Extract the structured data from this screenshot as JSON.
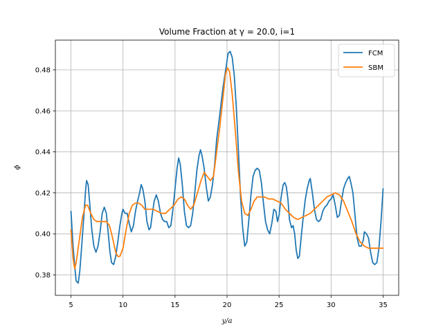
{
  "chart_data": {
    "type": "line",
    "title": "Volume Fraction at γ = 20.0, i=1",
    "xlabel": "y/a",
    "ylabel": "ϕ",
    "xlim": [
      3.5,
      36.5
    ],
    "ylim": [
      0.37,
      0.4945
    ],
    "xticks": [
      5,
      10,
      15,
      20,
      25,
      30,
      35
    ],
    "yticks": [
      0.38,
      0.4,
      0.42,
      0.44,
      0.46,
      0.48
    ],
    "ytick_labels": [
      "0.38",
      "0.40",
      "0.42",
      "0.44",
      "0.46",
      "0.48"
    ],
    "grid": true,
    "legend_position": "top-right",
    "series": [
      {
        "name": "FCM",
        "color": "#1f77b4",
        "points": [
          [
            5.0,
            0.411
          ],
          [
            5.2,
            0.394
          ],
          [
            5.4,
            0.382
          ],
          [
            5.5,
            0.377
          ],
          [
            5.7,
            0.376
          ],
          [
            5.85,
            0.382
          ],
          [
            6.0,
            0.392
          ],
          [
            6.2,
            0.406
          ],
          [
            6.4,
            0.421
          ],
          [
            6.5,
            0.426
          ],
          [
            6.65,
            0.424
          ],
          [
            6.8,
            0.415
          ],
          [
            7.0,
            0.402
          ],
          [
            7.2,
            0.394
          ],
          [
            7.4,
            0.391
          ],
          [
            7.6,
            0.394
          ],
          [
            7.8,
            0.401
          ],
          [
            8.0,
            0.41
          ],
          [
            8.2,
            0.413
          ],
          [
            8.4,
            0.41
          ],
          [
            8.55,
            0.402
          ],
          [
            8.75,
            0.391
          ],
          [
            8.9,
            0.386
          ],
          [
            9.1,
            0.385
          ],
          [
            9.3,
            0.389
          ],
          [
            9.5,
            0.396
          ],
          [
            9.7,
            0.404
          ],
          [
            9.9,
            0.41
          ],
          [
            10.0,
            0.412
          ],
          [
            10.2,
            0.41
          ],
          [
            10.4,
            0.41
          ],
          [
            10.6,
            0.405
          ],
          [
            10.8,
            0.401
          ],
          [
            11.0,
            0.404
          ],
          [
            11.2,
            0.411
          ],
          [
            11.4,
            0.416
          ],
          [
            11.6,
            0.42
          ],
          [
            11.75,
            0.424
          ],
          [
            11.9,
            0.422
          ],
          [
            12.1,
            0.416
          ],
          [
            12.3,
            0.406
          ],
          [
            12.5,
            0.402
          ],
          [
            12.65,
            0.403
          ],
          [
            12.8,
            0.409
          ],
          [
            13.0,
            0.416
          ],
          [
            13.2,
            0.419
          ],
          [
            13.4,
            0.416
          ],
          [
            13.6,
            0.41
          ],
          [
            13.8,
            0.407
          ],
          [
            14.0,
            0.406
          ],
          [
            14.2,
            0.406
          ],
          [
            14.4,
            0.403
          ],
          [
            14.6,
            0.404
          ],
          [
            14.8,
            0.412
          ],
          [
            15.0,
            0.422
          ],
          [
            15.2,
            0.432
          ],
          [
            15.35,
            0.437
          ],
          [
            15.5,
            0.434
          ],
          [
            15.7,
            0.424
          ],
          [
            15.9,
            0.411
          ],
          [
            16.1,
            0.404
          ],
          [
            16.3,
            0.403
          ],
          [
            16.5,
            0.404
          ],
          [
            16.7,
            0.41
          ],
          [
            16.9,
            0.42
          ],
          [
            17.1,
            0.431
          ],
          [
            17.3,
            0.438
          ],
          [
            17.45,
            0.441
          ],
          [
            17.6,
            0.438
          ],
          [
            17.8,
            0.432
          ],
          [
            18.0,
            0.423
          ],
          [
            18.2,
            0.416
          ],
          [
            18.4,
            0.418
          ],
          [
            18.6,
            0.424
          ],
          [
            18.8,
            0.433
          ],
          [
            19.0,
            0.446
          ],
          [
            19.3,
            0.458
          ],
          [
            19.6,
            0.471
          ],
          [
            19.9,
            0.481
          ],
          [
            20.1,
            0.488
          ],
          [
            20.3,
            0.489
          ],
          [
            20.5,
            0.486
          ],
          [
            20.7,
            0.477
          ],
          [
            20.9,
            0.461
          ],
          [
            21.1,
            0.44
          ],
          [
            21.3,
            0.418
          ],
          [
            21.5,
            0.403
          ],
          [
            21.7,
            0.394
          ],
          [
            21.9,
            0.396
          ],
          [
            22.1,
            0.407
          ],
          [
            22.3,
            0.419
          ],
          [
            22.5,
            0.428
          ],
          [
            22.7,
            0.431
          ],
          [
            22.9,
            0.432
          ],
          [
            23.1,
            0.431
          ],
          [
            23.3,
            0.425
          ],
          [
            23.5,
            0.415
          ],
          [
            23.7,
            0.406
          ],
          [
            23.9,
            0.402
          ],
          [
            24.1,
            0.4
          ],
          [
            24.3,
            0.405
          ],
          [
            24.5,
            0.412
          ],
          [
            24.7,
            0.411
          ],
          [
            24.85,
            0.406
          ],
          [
            25.0,
            0.409
          ],
          [
            25.2,
            0.418
          ],
          [
            25.4,
            0.424
          ],
          [
            25.55,
            0.425
          ],
          [
            25.7,
            0.423
          ],
          [
            25.85,
            0.417
          ],
          [
            26.0,
            0.407
          ],
          [
            26.2,
            0.403
          ],
          [
            26.35,
            0.404
          ],
          [
            26.5,
            0.4
          ],
          [
            26.65,
            0.392
          ],
          [
            26.8,
            0.388
          ],
          [
            26.95,
            0.389
          ],
          [
            27.1,
            0.397
          ],
          [
            27.3,
            0.407
          ],
          [
            27.5,
            0.416
          ],
          [
            27.7,
            0.422
          ],
          [
            27.9,
            0.426
          ],
          [
            28.0,
            0.427
          ],
          [
            28.2,
            0.42
          ],
          [
            28.4,
            0.412
          ],
          [
            28.6,
            0.407
          ],
          [
            28.8,
            0.406
          ],
          [
            29.0,
            0.407
          ],
          [
            29.2,
            0.411
          ],
          [
            29.4,
            0.413
          ],
          [
            29.6,
            0.414
          ],
          [
            29.8,
            0.416
          ],
          [
            30.0,
            0.417
          ],
          [
            30.2,
            0.419
          ],
          [
            30.4,
            0.414
          ],
          [
            30.6,
            0.408
          ],
          [
            30.8,
            0.409
          ],
          [
            31.0,
            0.416
          ],
          [
            31.2,
            0.422
          ],
          [
            31.4,
            0.425
          ],
          [
            31.6,
            0.427
          ],
          [
            31.75,
            0.428
          ],
          [
            31.9,
            0.425
          ],
          [
            32.1,
            0.42
          ],
          [
            32.3,
            0.409
          ],
          [
            32.5,
            0.398
          ],
          [
            32.7,
            0.394
          ],
          [
            32.9,
            0.394
          ],
          [
            33.1,
            0.397
          ],
          [
            33.2,
            0.401
          ],
          [
            33.4,
            0.4
          ],
          [
            33.6,
            0.398
          ],
          [
            33.8,
            0.391
          ],
          [
            34.0,
            0.386
          ],
          [
            34.2,
            0.385
          ],
          [
            34.4,
            0.386
          ],
          [
            34.6,
            0.393
          ],
          [
            34.8,
            0.406
          ],
          [
            35.0,
            0.422
          ]
        ]
      },
      {
        "name": "SBM",
        "color": "#ff7f0e",
        "points": [
          [
            5.0,
            0.402
          ],
          [
            5.2,
            0.388
          ],
          [
            5.35,
            0.383
          ],
          [
            5.5,
            0.386
          ],
          [
            5.8,
            0.397
          ],
          [
            6.1,
            0.408
          ],
          [
            6.4,
            0.414
          ],
          [
            6.6,
            0.414
          ],
          [
            6.9,
            0.41
          ],
          [
            7.2,
            0.407
          ],
          [
            7.5,
            0.406
          ],
          [
            7.8,
            0.406
          ],
          [
            8.1,
            0.406
          ],
          [
            8.4,
            0.406
          ],
          [
            8.7,
            0.404
          ],
          [
            9.0,
            0.398
          ],
          [
            9.3,
            0.391
          ],
          [
            9.5,
            0.389
          ],
          [
            9.7,
            0.389
          ],
          [
            10.0,
            0.393
          ],
          [
            10.3,
            0.402
          ],
          [
            10.6,
            0.41
          ],
          [
            10.9,
            0.414
          ],
          [
            11.2,
            0.415
          ],
          [
            11.5,
            0.415
          ],
          [
            11.8,
            0.414
          ],
          [
            12.1,
            0.412
          ],
          [
            12.5,
            0.412
          ],
          [
            12.9,
            0.412
          ],
          [
            13.3,
            0.411
          ],
          [
            13.7,
            0.41
          ],
          [
            14.1,
            0.41
          ],
          [
            14.5,
            0.412
          ],
          [
            14.9,
            0.414
          ],
          [
            15.3,
            0.417
          ],
          [
            15.6,
            0.418
          ],
          [
            15.9,
            0.417
          ],
          [
            16.2,
            0.414
          ],
          [
            16.5,
            0.412
          ],
          [
            16.8,
            0.414
          ],
          [
            17.1,
            0.419
          ],
          [
            17.5,
            0.426
          ],
          [
            17.8,
            0.43
          ],
          [
            18.1,
            0.428
          ],
          [
            18.4,
            0.426
          ],
          [
            18.7,
            0.428
          ],
          [
            19.0,
            0.44
          ],
          [
            19.3,
            0.452
          ],
          [
            19.6,
            0.466
          ],
          [
            19.85,
            0.478
          ],
          [
            20.05,
            0.481
          ],
          [
            20.25,
            0.479
          ],
          [
            20.5,
            0.468
          ],
          [
            20.8,
            0.45
          ],
          [
            21.1,
            0.43
          ],
          [
            21.4,
            0.416
          ],
          [
            21.7,
            0.41
          ],
          [
            22.0,
            0.409
          ],
          [
            22.3,
            0.412
          ],
          [
            22.6,
            0.416
          ],
          [
            22.9,
            0.418
          ],
          [
            23.2,
            0.418
          ],
          [
            23.6,
            0.418
          ],
          [
            24.0,
            0.417
          ],
          [
            24.4,
            0.417
          ],
          [
            24.8,
            0.416
          ],
          [
            25.2,
            0.415
          ],
          [
            25.6,
            0.412
          ],
          [
            26.0,
            0.41
          ],
          [
            26.4,
            0.408
          ],
          [
            26.8,
            0.407
          ],
          [
            27.2,
            0.408
          ],
          [
            27.6,
            0.409
          ],
          [
            28.0,
            0.41
          ],
          [
            28.4,
            0.412
          ],
          [
            28.8,
            0.414
          ],
          [
            29.2,
            0.416
          ],
          [
            29.6,
            0.418
          ],
          [
            30.0,
            0.419
          ],
          [
            30.4,
            0.42
          ],
          [
            30.8,
            0.419
          ],
          [
            31.2,
            0.416
          ],
          [
            31.6,
            0.411
          ],
          [
            32.0,
            0.406
          ],
          [
            32.4,
            0.4
          ],
          [
            32.8,
            0.396
          ],
          [
            33.2,
            0.394
          ],
          [
            33.6,
            0.393
          ],
          [
            34.0,
            0.393
          ],
          [
            34.4,
            0.393
          ],
          [
            34.7,
            0.393
          ],
          [
            35.0,
            0.393
          ]
        ]
      }
    ]
  }
}
